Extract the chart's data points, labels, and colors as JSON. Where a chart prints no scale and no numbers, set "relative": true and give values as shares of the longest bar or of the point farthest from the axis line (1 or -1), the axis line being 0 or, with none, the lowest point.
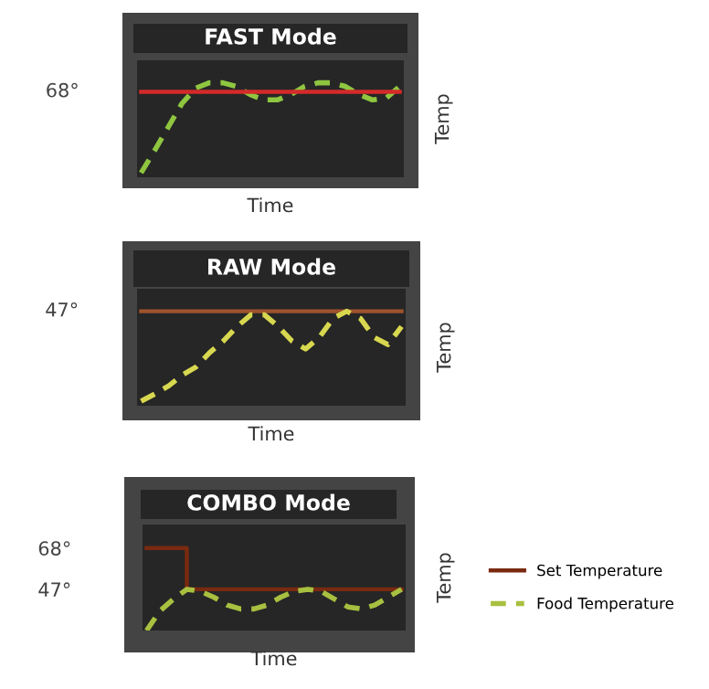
{
  "chart_data": [
    {
      "type": "line",
      "title": "FAST Mode",
      "xlabel": "Time",
      "ylabel": "Temp",
      "relative": true,
      "categories": [
        null,
        null,
        null,
        null,
        null,
        null,
        null,
        null,
        null,
        null,
        null,
        null,
        null,
        null,
        null,
        null,
        null,
        null,
        null,
        null
      ],
      "series": [
        {
          "color": "#8fc640",
          "line_style": "dashed",
          "values": [
            0,
            0.25,
            0.51,
            0.77,
            0.94,
            1.0,
            1.0,
            0.96,
            0.87,
            0.81,
            0.81,
            0.87,
            0.96,
            1.0,
            1.0,
            0.96,
            0.87,
            0.81,
            0.83,
            0.96
          ]
        },
        {
          "color": "#d42a2a",
          "line_style": "solid",
          "values": [
            0.9,
            0.9,
            0.9,
            0.9,
            0.9,
            0.9,
            0.9,
            0.9,
            0.9,
            0.9,
            0.9,
            0.9,
            0.9,
            0.9,
            0.9,
            0.9,
            0.9,
            0.9,
            0.9,
            0.9
          ]
        }
      ],
      "annotations": [
        "68°"
      ]
    },
    {
      "type": "line",
      "title": "RAW Mode",
      "xlabel": "Time",
      "ylabel": "Temp",
      "relative": true,
      "categories": [
        null,
        null,
        null,
        null,
        null,
        null,
        null,
        null,
        null,
        null,
        null,
        null,
        null,
        null,
        null,
        null,
        null,
        null,
        null,
        null
      ],
      "series": [
        {
          "color": "#a0522d",
          "line_style": "solid",
          "values": [
            1,
            1,
            1,
            1,
            1,
            1,
            1,
            1,
            1,
            1,
            1,
            1,
            1,
            1,
            1,
            1,
            1,
            1,
            1,
            1
          ]
        },
        {
          "color": "#d8d850",
          "line_style": "dashed",
          "values": [
            0,
            0.08,
            0.17,
            0.29,
            0.38,
            0.54,
            0.67,
            0.83,
            0.96,
            0.96,
            0.83,
            0.67,
            0.58,
            0.71,
            0.92,
            1.0,
            0.92,
            0.71,
            0.63,
            0.83
          ]
        }
      ],
      "annotations": [
        "47°"
      ]
    },
    {
      "type": "line",
      "title": "COMBO Mode",
      "xlabel": "Time",
      "ylabel": "Temp",
      "categories": [
        null,
        null,
        null,
        null,
        null,
        null,
        null,
        null,
        null,
        null,
        null,
        null,
        null,
        null,
        null,
        null,
        null,
        null,
        null,
        null
      ],
      "ylim": [
        26,
        80
      ],
      "yticks": [
        {
          "value": 68,
          "label": "68°"
        },
        {
          "value": 47,
          "label": "47°"
        }
      ],
      "series": [
        {
          "name": "Set Temperature",
          "type": "step",
          "color": "#7a2a10",
          "line_style": "solid",
          "values": [
            68,
            68,
            68,
            47,
            47,
            47,
            47,
            47,
            47,
            47,
            47,
            47,
            47,
            47,
            47,
            47,
            47,
            47,
            47,
            47
          ]
        },
        {
          "name": "Food Temperature",
          "color": "#a8c040",
          "line_style": "dashed",
          "values": [
            26,
            36,
            42,
            47,
            46,
            43,
            39,
            37,
            37,
            39,
            43,
            46,
            47,
            46,
            42,
            38,
            37,
            39,
            43,
            47
          ]
        }
      ],
      "legend": "right"
    }
  ]
}
